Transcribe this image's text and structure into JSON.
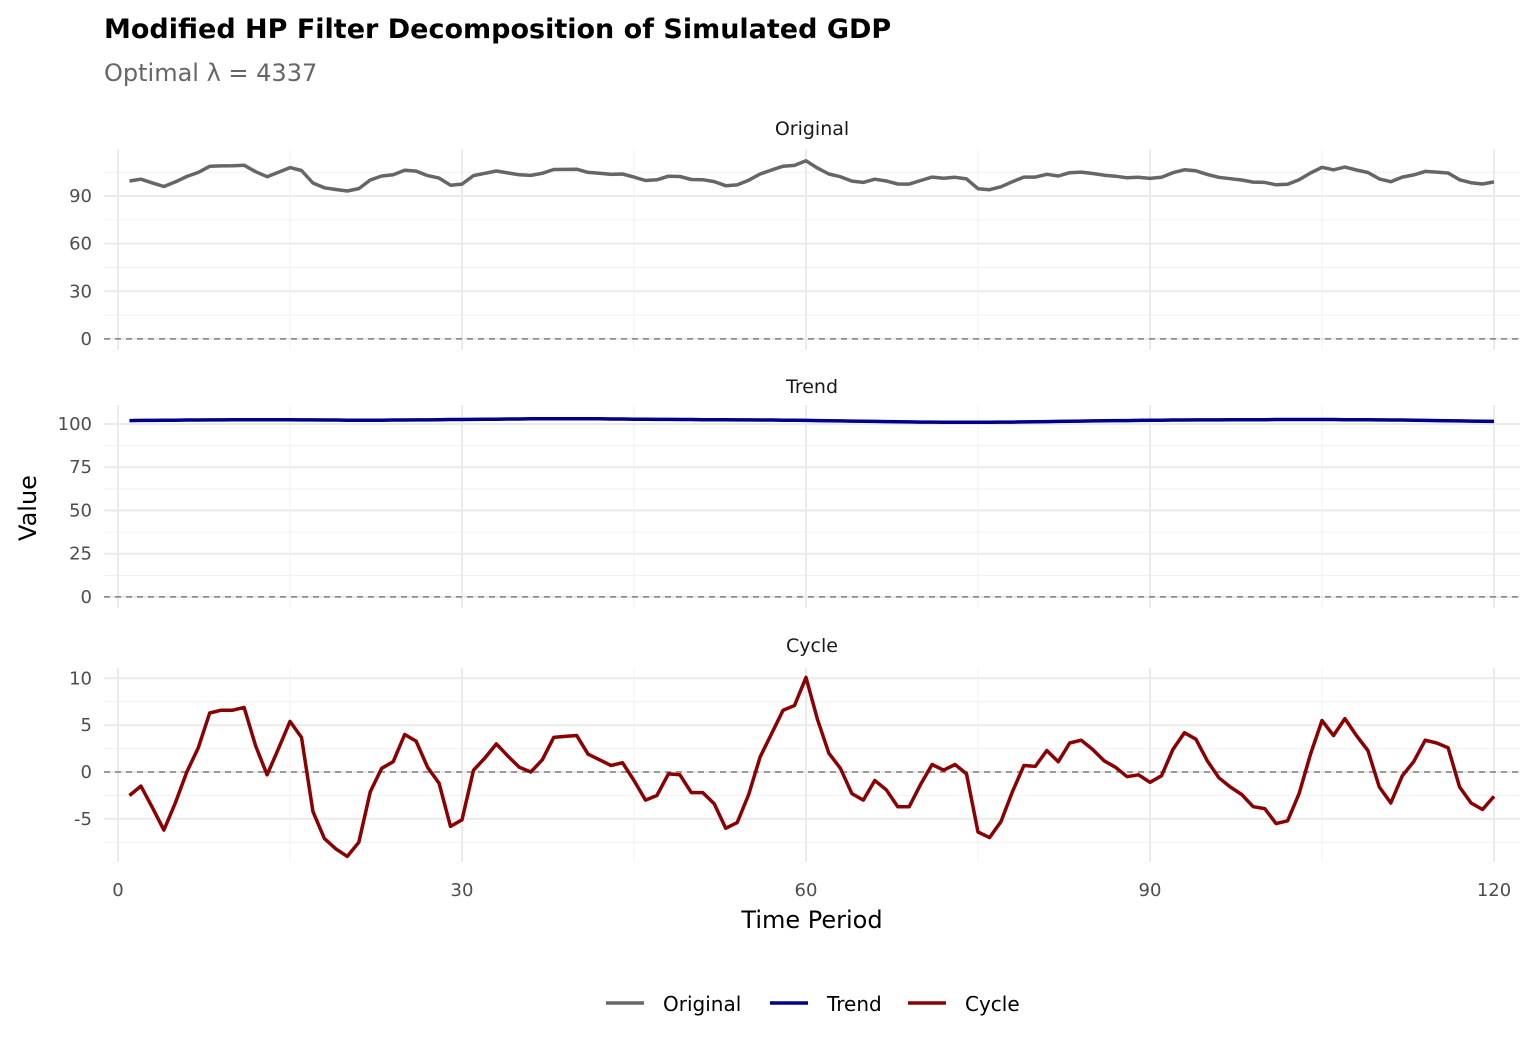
{
  "chart_data": {
    "type": "line",
    "title": "Modified HP Filter Decomposition of Simulated GDP",
    "subtitle": "Optimal λ = 4337",
    "xlabel": "Time Period",
    "ylabel": "Value",
    "xlim": [
      0,
      120
    ],
    "x_ticks": [
      0,
      30,
      60,
      90,
      120
    ],
    "x_tick_labels": [
      "0",
      "30",
      "60",
      "90",
      "120"
    ],
    "grid": true,
    "legend_position": "bottom",
    "legend": [
      "Original",
      "Trend",
      "Cycle"
    ],
    "x_start": 1,
    "reference_line": {
      "y": 0,
      "style": "dashed",
      "color": "#808080"
    },
    "panels": [
      {
        "strip": "Original",
        "color": "#666666",
        "ylim": [
          -7,
          119
        ],
        "y_ticks": [
          0,
          30,
          60,
          90
        ],
        "y_tick_labels": [
          "0",
          "30",
          "60",
          "90"
        ],
        "values": [
          99.5,
          100.6,
          98.3,
          96.0,
          98.9,
          102.3,
          104.9,
          108.7,
          109.0,
          109.1,
          109.4,
          105.3,
          102.2,
          105.0,
          107.9,
          106.1,
          98.2,
          95.2,
          94.1,
          93.2,
          94.7,
          100.1,
          102.6,
          103.4,
          106.3,
          105.7,
          102.9,
          101.3,
          96.8,
          97.5,
          102.9,
          104.3,
          105.8,
          104.6,
          103.4,
          103.0,
          104.3,
          106.7,
          106.8,
          106.9,
          104.9,
          104.3,
          103.6,
          103.9,
          101.9,
          99.8,
          100.2,
          102.5,
          102.3,
          100.4,
          100.3,
          99.1,
          96.5,
          97.0,
          100.0,
          103.9,
          106.4,
          108.8,
          109.3,
          112.2,
          107.6,
          103.9,
          102.2,
          99.4,
          98.6,
          100.6,
          99.5,
          97.6,
          97.5,
          99.8,
          101.9,
          101.2,
          101.8,
          100.8,
          94.6,
          94.0,
          95.8,
          99.0,
          101.9,
          101.9,
          103.7,
          102.6,
          104.7,
          105.1,
          104.2,
          103.1,
          102.5,
          101.5,
          101.8,
          101.1,
          101.8,
          104.7,
          106.5,
          105.9,
          103.6,
          101.8,
          100.9,
          100.1,
          98.8,
          98.6,
          97.1,
          97.4,
          100.3,
          104.5,
          108.1,
          106.5,
          108.2,
          106.4,
          104.8,
          100.8,
          99.0,
          101.9,
          103.3,
          105.5,
          105.1,
          104.5,
          100.2,
          98.4,
          97.6,
          98.9
        ]
      },
      {
        "strip": "Trend",
        "color": "#00008B",
        "ylim": [
          -6.4,
          111
        ],
        "y_ticks": [
          0,
          25,
          50,
          75,
          100
        ],
        "y_tick_labels": [
          "0",
          "25",
          "50",
          "75",
          "100"
        ],
        "values": [
          102.0,
          102.1,
          102.1,
          102.2,
          102.2,
          102.3,
          102.3,
          102.4,
          102.4,
          102.5,
          102.5,
          102.5,
          102.5,
          102.5,
          102.5,
          102.4,
          102.4,
          102.3,
          102.3,
          102.2,
          102.2,
          102.2,
          102.2,
          102.3,
          102.3,
          102.4,
          102.4,
          102.5,
          102.6,
          102.6,
          102.7,
          102.8,
          102.8,
          102.9,
          102.9,
          103.0,
          103.0,
          103.0,
          103.0,
          103.0,
          103.0,
          103.0,
          102.9,
          102.9,
          102.8,
          102.8,
          102.7,
          102.7,
          102.6,
          102.6,
          102.5,
          102.5,
          102.5,
          102.4,
          102.4,
          102.3,
          102.3,
          102.2,
          102.2,
          102.1,
          102.0,
          101.9,
          101.8,
          101.7,
          101.6,
          101.5,
          101.4,
          101.3,
          101.2,
          101.1,
          101.1,
          101.0,
          101.0,
          101.0,
          101.0,
          101.0,
          101.1,
          101.1,
          101.2,
          101.3,
          101.4,
          101.5,
          101.6,
          101.7,
          101.8,
          101.9,
          102.0,
          102.0,
          102.1,
          102.2,
          102.2,
          102.3,
          102.3,
          102.4,
          102.4,
          102.4,
          102.5,
          102.5,
          102.5,
          102.5,
          102.6,
          102.6,
          102.6,
          102.6,
          102.6,
          102.6,
          102.5,
          102.5,
          102.5,
          102.4,
          102.3,
          102.3,
          102.2,
          102.1,
          102.0,
          101.9,
          101.8,
          101.7,
          101.6,
          101.5
        ]
      },
      {
        "strip": "Cycle",
        "color": "#8B0000",
        "ylim": [
          -9.6,
          11.1
        ],
        "y_ticks": [
          -5,
          0,
          5,
          10
        ],
        "y_tick_labels": [
          "-5",
          "0",
          "5",
          "10"
        ],
        "values": [
          -2.5,
          -1.5,
          -3.8,
          -6.2,
          -3.3,
          0.0,
          2.6,
          6.3,
          6.6,
          6.6,
          6.9,
          2.8,
          -0.3,
          2.5,
          5.4,
          3.7,
          -4.2,
          -7.1,
          -8.2,
          -9.0,
          -7.5,
          -2.1,
          0.4,
          1.1,
          4.0,
          3.3,
          0.5,
          -1.2,
          -5.8,
          -5.1,
          0.2,
          1.5,
          3.0,
          1.7,
          0.5,
          0.0,
          1.3,
          3.7,
          3.8,
          3.9,
          1.9,
          1.3,
          0.7,
          1.0,
          -0.9,
          -3.0,
          -2.5,
          -0.2,
          -0.3,
          -2.2,
          -2.2,
          -3.4,
          -6.0,
          -5.4,
          -2.4,
          1.6,
          4.1,
          6.6,
          7.1,
          10.1,
          5.6,
          2.0,
          0.4,
          -2.3,
          -3.0,
          -0.9,
          -1.9,
          -3.7,
          -3.7,
          -1.3,
          0.8,
          0.2,
          0.8,
          -0.2,
          -6.4,
          -7.0,
          -5.3,
          -2.1,
          0.7,
          0.6,
          2.3,
          1.1,
          3.1,
          3.4,
          2.4,
          1.2,
          0.5,
          -0.5,
          -0.3,
          -1.1,
          -0.4,
          2.4,
          4.2,
          3.5,
          1.2,
          -0.6,
          -1.6,
          -2.4,
          -3.7,
          -3.9,
          -5.5,
          -5.2,
          -2.3,
          1.9,
          5.5,
          3.9,
          5.7,
          3.9,
          2.3,
          -1.6,
          -3.3,
          -0.4,
          1.1,
          3.4,
          3.1,
          2.6,
          -1.6,
          -3.3,
          -4.0,
          -2.6
        ]
      }
    ]
  }
}
